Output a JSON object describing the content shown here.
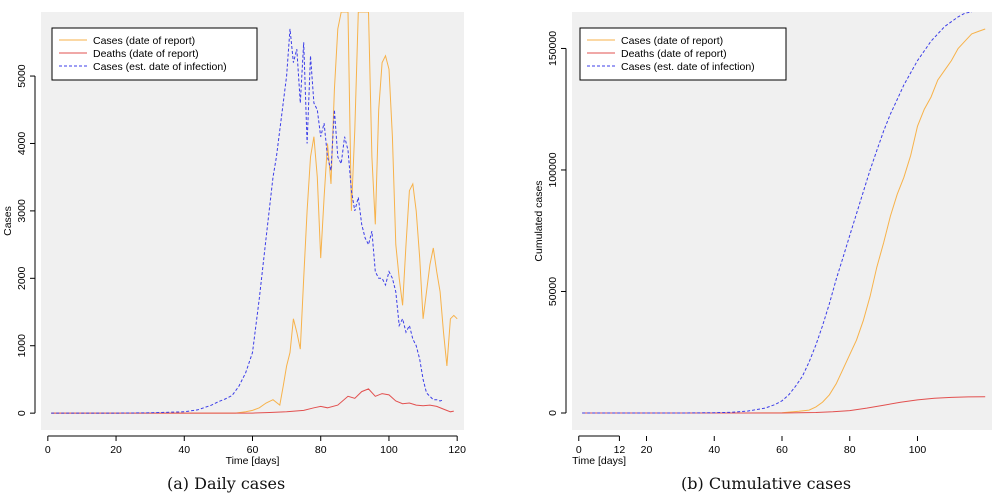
{
  "figure": {
    "captions": [
      "(a) Daily cases",
      "(b) Cumulative cases"
    ]
  },
  "colors": {
    "panel_bg": "#f0f0f0",
    "cases_report": "#f7b24a",
    "deaths_report": "#e2504f",
    "cases_infection": "#3b3de8"
  },
  "chart_data": [
    {
      "type": "line",
      "title": "",
      "xlabel": "Time [days]",
      "ylabel": "Cases",
      "xlim": [
        -2,
        122
      ],
      "ylim": [
        -250,
        5950
      ],
      "xticks": [
        0,
        20,
        40,
        60,
        80,
        100,
        120
      ],
      "yticks": [
        0,
        1000,
        2000,
        3000,
        4000,
        5000
      ],
      "grid": false,
      "legend_position": "top-left",
      "series": [
        {
          "name": "Cases (date of report)",
          "color": "#f7b24a",
          "dash": "solid",
          "x": [
            1,
            5,
            10,
            15,
            20,
            25,
            30,
            35,
            40,
            45,
            50,
            55,
            58,
            60,
            62,
            64,
            66,
            68,
            69,
            70,
            71,
            72,
            73,
            74,
            75,
            76,
            77,
            78,
            79,
            80,
            81,
            82,
            83,
            84,
            85,
            86,
            87,
            88,
            89,
            90,
            91,
            92,
            93,
            94,
            95,
            96,
            97,
            98,
            99,
            100,
            101,
            102,
            103,
            104,
            105,
            106,
            107,
            108,
            109,
            110,
            111,
            112,
            113,
            114,
            115,
            116,
            117,
            118,
            119,
            120
          ],
          "y": [
            0,
            0,
            0,
            0,
            0,
            0,
            0,
            0,
            0,
            0,
            0,
            0,
            20,
            40,
            80,
            150,
            200,
            120,
            400,
            700,
            900,
            1400,
            1200,
            950,
            2000,
            3000,
            3800,
            4100,
            3500,
            2300,
            3200,
            4000,
            3400,
            4800,
            5700,
            5950,
            5950,
            5950,
            3000,
            4200,
            5950,
            5950,
            5950,
            5950,
            3800,
            2800,
            4500,
            5200,
            5300,
            5100,
            4100,
            2500,
            2000,
            1600,
            2500,
            3300,
            3400,
            3000,
            2300,
            1400,
            1800,
            2200,
            2450,
            2100,
            1800,
            1200,
            700,
            1400,
            1450,
            1400
          ]
        },
        {
          "name": "Deaths (date of report)",
          "color": "#e2504f",
          "dash": "solid",
          "x": [
            1,
            10,
            20,
            30,
            40,
            50,
            55,
            60,
            65,
            70,
            75,
            78,
            80,
            82,
            85,
            88,
            90,
            92,
            94,
            96,
            98,
            100,
            102,
            104,
            106,
            108,
            110,
            112,
            114,
            116,
            118,
            119
          ],
          "y": [
            0,
            0,
            0,
            0,
            0,
            0,
            0,
            0,
            10,
            20,
            40,
            80,
            100,
            80,
            120,
            250,
            220,
            320,
            360,
            250,
            290,
            270,
            180,
            140,
            150,
            120,
            110,
            120,
            100,
            60,
            20,
            30
          ]
        },
        {
          "name": "Cases (est. date of infection)",
          "color": "#3b3de8",
          "dash": "dashed",
          "x": [
            1,
            10,
            20,
            30,
            40,
            44,
            48,
            50,
            52,
            54,
            56,
            58,
            60,
            62,
            64,
            66,
            67,
            68,
            69,
            70,
            71,
            72,
            73,
            74,
            75,
            76,
            77,
            78,
            79,
            80,
            81,
            82,
            83,
            84,
            85,
            86,
            87,
            88,
            89,
            90,
            91,
            92,
            93,
            94,
            95,
            96,
            97,
            98,
            99,
            100,
            101,
            102,
            103,
            104,
            105,
            106,
            107,
            108,
            109,
            110,
            111,
            112,
            113,
            114,
            115,
            116
          ],
          "y": [
            0,
            0,
            0,
            5,
            20,
            50,
            120,
            170,
            210,
            260,
            400,
            600,
            900,
            1700,
            2600,
            3500,
            3800,
            4200,
            4600,
            5000,
            5700,
            5200,
            5400,
            4600,
            5500,
            4000,
            5300,
            4600,
            4500,
            4100,
            4300,
            3800,
            3600,
            4500,
            3800,
            3700,
            4100,
            3900,
            3300,
            3000,
            3200,
            2800,
            2600,
            2500,
            2700,
            2100,
            2000,
            2000,
            1900,
            2100,
            2000,
            1800,
            1300,
            1400,
            1200,
            1300,
            1100,
            1000,
            800,
            500,
            300,
            250,
            200,
            200,
            180,
            200
          ]
        }
      ]
    },
    {
      "type": "line",
      "title": "",
      "xlabel": "Time [days]",
      "ylabel": "Cumulated cases",
      "xlim": [
        -2,
        122
      ],
      "ylim": [
        -7000,
        165000
      ],
      "xticks": [
        0,
        20,
        40,
        60,
        80,
        100,
        "12"
      ],
      "yticks": [
        0,
        50000,
        100000,
        150000
      ],
      "grid": false,
      "legend_position": "top-left",
      "series": [
        {
          "name": "Cases (date of report)",
          "color": "#f7b24a",
          "dash": "solid",
          "x": [
            1,
            10,
            20,
            30,
            40,
            50,
            60,
            65,
            68,
            70,
            72,
            74,
            76,
            78,
            80,
            82,
            84,
            86,
            88,
            90,
            92,
            94,
            96,
            98,
            100,
            102,
            104,
            106,
            108,
            110,
            112,
            114,
            116,
            118,
            120
          ],
          "y": [
            0,
            0,
            0,
            0,
            0,
            0,
            100,
            700,
            1200,
            2500,
            4500,
            7500,
            12000,
            18000,
            24000,
            30000,
            38000,
            48000,
            60000,
            70000,
            81000,
            90000,
            97000,
            106000,
            118000,
            125000,
            130000,
            137000,
            141000,
            145000,
            150000,
            153000,
            156000,
            157000,
            158000
          ]
        },
        {
          "name": "Deaths (date of report)",
          "color": "#e2504f",
          "dash": "solid",
          "x": [
            1,
            20,
            40,
            60,
            70,
            75,
            80,
            85,
            90,
            95,
            100,
            105,
            110,
            115,
            120
          ],
          "y": [
            0,
            0,
            0,
            0,
            200,
            500,
            1000,
            2000,
            3200,
            4400,
            5400,
            6100,
            6400,
            6600,
            6700
          ]
        },
        {
          "name": "Cases (est. date of infection)",
          "color": "#3b3de8",
          "dash": "dashed",
          "x": [
            1,
            10,
            20,
            30,
            40,
            45,
            50,
            55,
            58,
            60,
            62,
            64,
            66,
            68,
            70,
            72,
            74,
            76,
            78,
            80,
            82,
            84,
            86,
            88,
            90,
            92,
            94,
            96,
            98,
            100,
            102,
            104,
            106,
            108,
            110,
            112,
            114,
            116
          ],
          "y": [
            0,
            0,
            0,
            0,
            100,
            300,
            800,
            2000,
            3500,
            5000,
            7500,
            11000,
            15000,
            21000,
            28000,
            36000,
            45000,
            55000,
            64000,
            73000,
            82000,
            91000,
            100000,
            108000,
            116000,
            123000,
            129000,
            135000,
            140000,
            145000,
            149000,
            153000,
            156000,
            159000,
            161000,
            163000,
            164500,
            165000
          ]
        }
      ]
    }
  ]
}
